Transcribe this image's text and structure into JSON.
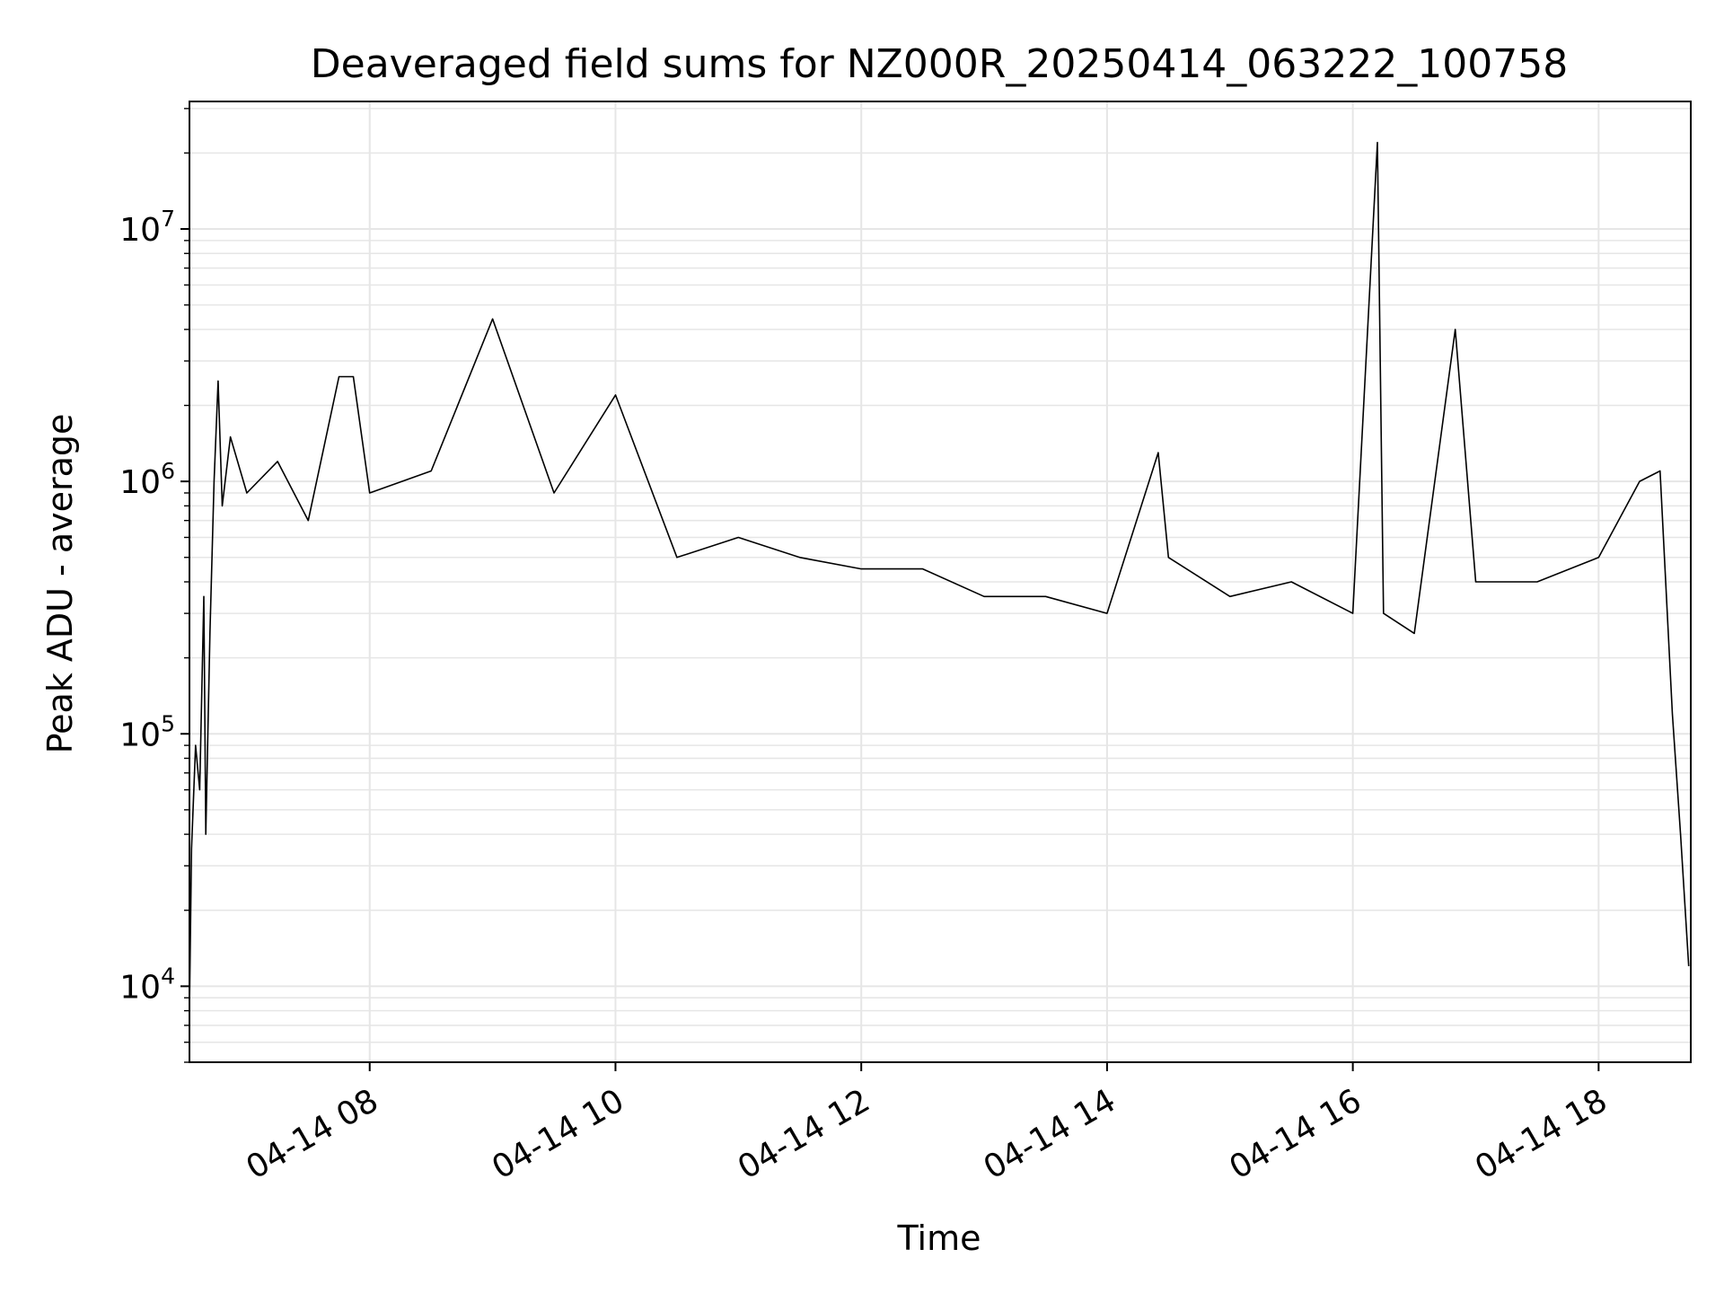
{
  "chart_data": {
    "type": "line",
    "title": "Deaveraged field sums for NZ000R_20250414_063222_100758",
    "xlabel": "Time",
    "ylabel": "Peak ADU - average",
    "yscale": "log",
    "ylim": [
      5000,
      32000000
    ],
    "xlim": [
      "2025-04-14 06:32",
      "2025-04-14 18:45"
    ],
    "xticks": [
      {
        "t": "2025-04-14 08:00",
        "label": "04-14 08"
      },
      {
        "t": "2025-04-14 10:00",
        "label": "04-14 10"
      },
      {
        "t": "2025-04-14 12:00",
        "label": "04-14 12"
      },
      {
        "t": "2025-04-14 14:00",
        "label": "04-14 14"
      },
      {
        "t": "2025-04-14 16:00",
        "label": "04-14 16"
      },
      {
        "t": "2025-04-14 18:00",
        "label": "04-14 18"
      }
    ],
    "yticks": [
      {
        "v": 10000,
        "base": "10",
        "exp": "4"
      },
      {
        "v": 100000,
        "base": "10",
        "exp": "5"
      },
      {
        "v": 1000000,
        "base": "10",
        "exp": "6"
      },
      {
        "v": 10000000,
        "base": "10",
        "exp": "7"
      }
    ],
    "grid": true,
    "line_color": "#000000",
    "grid_color": "#e6e6e6",
    "series": [
      {
        "points": [
          [
            "2025-04-14 06:32",
            8000
          ],
          [
            "2025-04-14 06:33",
            35000
          ],
          [
            "2025-04-14 06:35",
            90000
          ],
          [
            "2025-04-14 06:37",
            60000
          ],
          [
            "2025-04-14 06:39",
            350000
          ],
          [
            "2025-04-14 06:40",
            40000
          ],
          [
            "2025-04-14 06:42",
            250000
          ],
          [
            "2025-04-14 06:44",
            1000000
          ],
          [
            "2025-04-14 06:46",
            2500000
          ],
          [
            "2025-04-14 06:48",
            800000
          ],
          [
            "2025-04-14 06:52",
            1500000
          ],
          [
            "2025-04-14 07:00",
            900000
          ],
          [
            "2025-04-14 07:15",
            1200000
          ],
          [
            "2025-04-14 07:30",
            700000
          ],
          [
            "2025-04-14 07:45",
            2600000
          ],
          [
            "2025-04-14 07:52",
            2600000
          ],
          [
            "2025-04-14 08:00",
            900000
          ],
          [
            "2025-04-14 08:30",
            1100000
          ],
          [
            "2025-04-14 09:00",
            4400000
          ],
          [
            "2025-04-14 09:30",
            900000
          ],
          [
            "2025-04-14 10:00",
            2200000
          ],
          [
            "2025-04-14 10:30",
            500000
          ],
          [
            "2025-04-14 11:00",
            600000
          ],
          [
            "2025-04-14 11:30",
            500000
          ],
          [
            "2025-04-14 12:00",
            450000
          ],
          [
            "2025-04-14 12:30",
            450000
          ],
          [
            "2025-04-14 13:00",
            350000
          ],
          [
            "2025-04-14 13:30",
            350000
          ],
          [
            "2025-04-14 14:00",
            300000
          ],
          [
            "2025-04-14 14:25",
            1300000
          ],
          [
            "2025-04-14 14:30",
            500000
          ],
          [
            "2025-04-14 15:00",
            350000
          ],
          [
            "2025-04-14 15:30",
            400000
          ],
          [
            "2025-04-14 16:00",
            300000
          ],
          [
            "2025-04-14 16:12",
            22000000
          ],
          [
            "2025-04-14 16:15",
            300000
          ],
          [
            "2025-04-14 16:30",
            250000
          ],
          [
            "2025-04-14 16:50",
            4000000
          ],
          [
            "2025-04-14 17:00",
            400000
          ],
          [
            "2025-04-14 17:30",
            400000
          ],
          [
            "2025-04-14 18:00",
            500000
          ],
          [
            "2025-04-14 18:20",
            1000000
          ],
          [
            "2025-04-14 18:30",
            1100000
          ],
          [
            "2025-04-14 18:36",
            120000
          ],
          [
            "2025-04-14 18:40",
            40000
          ],
          [
            "2025-04-14 18:44",
            12000
          ]
        ]
      }
    ]
  }
}
